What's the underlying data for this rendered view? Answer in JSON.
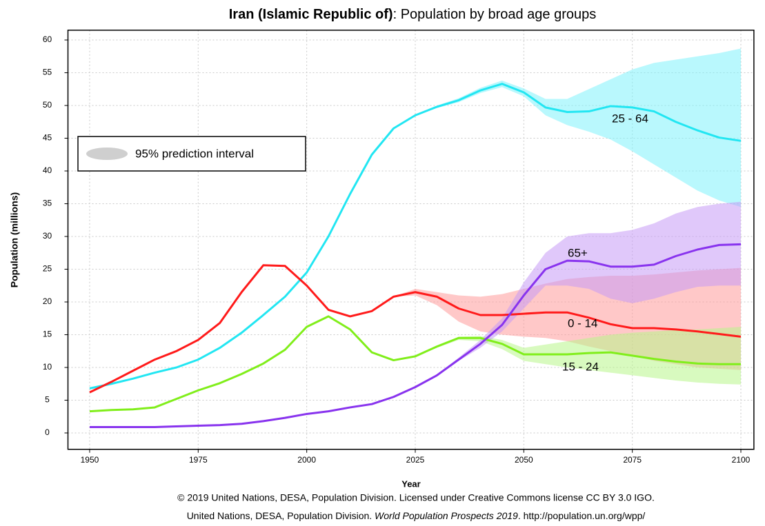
{
  "chart_data": {
    "type": "line",
    "title_bold": "Iran (Islamic Republic of)",
    "title_rest": ": Population by broad age groups",
    "x_label": "Year",
    "y_label": "Population (millions)",
    "legend_label": "95% prediction interval",
    "note_line1": "© 2019 United Nations, DESA, Population Division. Licensed under Creative Commons license CC BY 3.0 IGO.",
    "note_line2_start": "United Nations, DESA, Population Division. ",
    "note_line2_italic": "World Population Prospects 2019",
    "note_line2_end": ". http://population.un.org/wpp/",
    "x": [
      1950,
      1955,
      1960,
      1965,
      1970,
      1975,
      1980,
      1985,
      1990,
      1995,
      2000,
      2005,
      2010,
      2015,
      2020,
      2025,
      2030,
      2035,
      2040,
      2045,
      2050,
      2055,
      2060,
      2065,
      2070,
      2075,
      2080,
      2085,
      2090,
      2095,
      2100
    ],
    "xlim": [
      1945,
      2103
    ],
    "xticks": [
      1950,
      1975,
      2000,
      2025,
      2050,
      2075,
      2100
    ],
    "ylim": [
      -2.5,
      61.5
    ],
    "yticks": [
      0,
      5,
      10,
      15,
      20,
      25,
      30,
      35,
      40,
      45,
      50,
      55,
      60
    ],
    "grid": true,
    "series": [
      {
        "name": "25 - 64",
        "color": "#22e6f2",
        "band_color": "#7ff2fb",
        "values": [
          6.8,
          7.5,
          8.3,
          9.2,
          10.0,
          11.2,
          13.0,
          15.3,
          18.0,
          20.8,
          24.5,
          30.0,
          36.5,
          42.5,
          46.5,
          48.5,
          49.8,
          50.8,
          52.3,
          53.3,
          52.0,
          49.7,
          49.0,
          49.1,
          49.9,
          49.7,
          49.1,
          47.5,
          46.2,
          45.1,
          44.6
        ],
        "band_upper": [
          null,
          null,
          null,
          null,
          null,
          null,
          null,
          null,
          null,
          null,
          null,
          null,
          null,
          null,
          46.5,
          48.6,
          50.0,
          51.1,
          52.7,
          53.8,
          52.6,
          51.0,
          51.0,
          52.5,
          54.0,
          55.5,
          56.5,
          57.0,
          57.5,
          58.0,
          58.7
        ],
        "band_lower": [
          null,
          null,
          null,
          null,
          null,
          null,
          null,
          null,
          null,
          null,
          null,
          null,
          null,
          null,
          46.5,
          48.4,
          49.6,
          50.5,
          51.9,
          52.8,
          51.4,
          48.5,
          47.0,
          46.0,
          44.8,
          43.0,
          41.0,
          39.0,
          37.0,
          35.5,
          34.5
        ]
      },
      {
        "name": "0 - 14",
        "color": "#ff1a1a",
        "band_color": "#ff9a9a",
        "values": [
          6.2,
          7.8,
          9.5,
          11.2,
          12.5,
          14.2,
          16.8,
          21.5,
          25.6,
          25.5,
          22.5,
          18.8,
          17.8,
          18.6,
          20.8,
          21.5,
          20.8,
          19.0,
          18.0,
          18.0,
          18.2,
          18.4,
          18.4,
          17.6,
          16.6,
          16.0,
          16.0,
          15.8,
          15.5,
          15.1,
          14.7
        ],
        "band_upper": [
          null,
          null,
          null,
          null,
          null,
          null,
          null,
          null,
          null,
          null,
          null,
          null,
          null,
          null,
          20.8,
          22.0,
          21.5,
          21.0,
          20.8,
          21.2,
          22.0,
          22.8,
          23.5,
          23.8,
          24.0,
          24.0,
          24.2,
          24.5,
          24.8,
          25.0,
          25.2
        ],
        "band_lower": [
          null,
          null,
          null,
          null,
          null,
          null,
          null,
          null,
          null,
          null,
          null,
          null,
          null,
          null,
          20.8,
          21.0,
          19.5,
          17.0,
          15.5,
          15.0,
          14.7,
          14.5,
          14.0,
          13.2,
          12.5,
          11.8,
          11.0,
          10.5,
          10.0,
          9.8,
          9.6
        ]
      },
      {
        "name": "15 - 24",
        "color": "#80ee1a",
        "band_color": "#b8f58a",
        "values": [
          3.3,
          3.5,
          3.6,
          3.9,
          5.2,
          6.5,
          7.6,
          9.0,
          10.6,
          12.7,
          16.2,
          17.8,
          15.8,
          12.3,
          11.1,
          11.7,
          13.2,
          14.5,
          14.5,
          13.6,
          12.0,
          12.0,
          12.0,
          12.2,
          12.3,
          11.8,
          11.3,
          10.9,
          10.6,
          10.5,
          10.5
        ],
        "band_upper": [
          null,
          null,
          null,
          null,
          null,
          null,
          null,
          null,
          null,
          null,
          null,
          null,
          null,
          null,
          11.1,
          11.8,
          13.3,
          14.7,
          14.8,
          14.2,
          13.0,
          13.5,
          14.0,
          14.5,
          15.0,
          15.3,
          15.5,
          15.7,
          15.8,
          16.0,
          16.2
        ],
        "band_lower": [
          null,
          null,
          null,
          null,
          null,
          null,
          null,
          null,
          null,
          null,
          null,
          null,
          null,
          null,
          11.1,
          11.6,
          13.0,
          14.2,
          14.0,
          12.8,
          11.0,
          10.5,
          10.0,
          9.6,
          9.2,
          8.8,
          8.4,
          8.0,
          7.7,
          7.5,
          7.4
        ]
      },
      {
        "name": "65+",
        "color": "#8833ee",
        "band_color": "#c79af5",
        "values": [
          0.9,
          0.9,
          0.9,
          0.9,
          1.0,
          1.1,
          1.2,
          1.4,
          1.8,
          2.3,
          2.9,
          3.3,
          3.9,
          4.4,
          5.5,
          7.0,
          8.8,
          11.2,
          13.6,
          16.5,
          21.0,
          25.0,
          26.3,
          26.2,
          25.4,
          25.4,
          25.7,
          27.0,
          28.0,
          28.7,
          28.8
        ],
        "band_upper": [
          null,
          null,
          null,
          null,
          null,
          null,
          null,
          null,
          null,
          null,
          null,
          null,
          null,
          null,
          5.5,
          7.0,
          8.9,
          11.5,
          14.2,
          17.5,
          23.0,
          27.5,
          30.0,
          30.5,
          30.5,
          31.0,
          32.0,
          33.5,
          34.5,
          35.0,
          35.3
        ],
        "band_lower": [
          null,
          null,
          null,
          null,
          null,
          null,
          null,
          null,
          null,
          null,
          null,
          null,
          null,
          null,
          5.5,
          7.0,
          8.7,
          11.0,
          13.0,
          15.5,
          19.0,
          22.5,
          22.5,
          22.0,
          20.5,
          19.8,
          20.5,
          21.5,
          22.3,
          22.5,
          22.5
        ]
      }
    ]
  }
}
